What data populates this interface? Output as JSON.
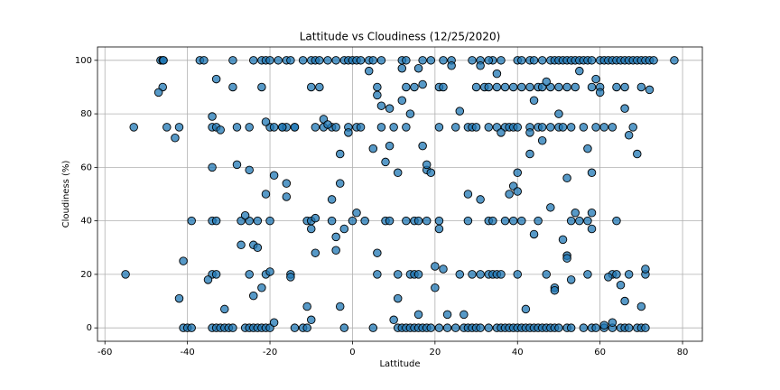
{
  "chart_data": {
    "type": "scatter",
    "title": "Lattitude vs Cloudiness (12/25/2020)",
    "x_label": "Lattitude",
    "y_label": "Cloudiness (%)",
    "color": "#1f77b4",
    "edgecolor": "#000000",
    "grid": true,
    "xlim": [
      -61.8,
      84.8
    ],
    "ylim": [
      -5,
      105
    ],
    "xticks": [
      -60,
      -40,
      -20,
      0,
      20,
      40,
      60,
      80
    ],
    "yticks": [
      0,
      20,
      40,
      60,
      80,
      100
    ],
    "x": [
      -46.5,
      -46,
      -45.8,
      -37,
      -36,
      -29,
      -24,
      -22,
      -21,
      -20,
      -18,
      -16,
      -15,
      -12,
      -10,
      -9,
      -8,
      -6,
      -4,
      -2,
      -1,
      0,
      1,
      2,
      4,
      5,
      7,
      12,
      13,
      17,
      19,
      22,
      24,
      29,
      31,
      34,
      36,
      40,
      41,
      43,
      44,
      46,
      48,
      49,
      50,
      51,
      52,
      53,
      54,
      55,
      56,
      57,
      58,
      60,
      61,
      62,
      63,
      64,
      65,
      66,
      67,
      68,
      69,
      70,
      71,
      72,
      73,
      78,
      -41,
      -40,
      -39,
      -34,
      -33,
      -32,
      -31,
      -30,
      -29,
      -26,
      -25,
      -24,
      -23,
      -22,
      -21,
      -20,
      -14,
      -12,
      -11,
      -2,
      5,
      11,
      12,
      13,
      14,
      15,
      16,
      17,
      18,
      19,
      21,
      23,
      25,
      27,
      28,
      29,
      30,
      31,
      33,
      35,
      36,
      37,
      38,
      39,
      40,
      41,
      42,
      43,
      44,
      45,
      46,
      47,
      48,
      49,
      50,
      52,
      53,
      56,
      58,
      59,
      61,
      63,
      65,
      66,
      67,
      69,
      70,
      71,
      -53,
      -45,
      -42,
      -34,
      -33,
      -28,
      -25,
      -20,
      -19,
      -17,
      -16,
      -14,
      -9,
      -7,
      -5,
      -4,
      -1,
      1,
      2,
      7,
      10,
      13,
      21,
      25,
      28,
      29,
      30,
      33,
      35,
      37,
      38,
      39,
      40,
      43,
      45,
      46,
      48,
      50,
      51,
      53,
      56,
      59,
      61,
      63,
      -46,
      -29,
      -22,
      -10,
      -8,
      6,
      13,
      15,
      21,
      30,
      32,
      33,
      35,
      37,
      39,
      41,
      43,
      45,
      46,
      48,
      50,
      52,
      54,
      58,
      60,
      64,
      66,
      70,
      -39,
      -34,
      -33,
      -27,
      -25,
      -23,
      -20,
      -11,
      -10,
      -5,
      0,
      3,
      8,
      9,
      13,
      15,
      16,
      18,
      21,
      28,
      33,
      34,
      37,
      39,
      41,
      45,
      53,
      55,
      57,
      64,
      -55,
      -34,
      -33,
      -25,
      -21,
      -15,
      6,
      11,
      14,
      15,
      16,
      26,
      29,
      31,
      33,
      34,
      35,
      36,
      40,
      47,
      57,
      63,
      67,
      71,
      -47,
      -43,
      -42,
      -41,
      -35,
      -34,
      -34,
      -33,
      -32,
      -31,
      -28,
      -27,
      -26,
      -25,
      -24,
      -24,
      -23,
      -22,
      -21,
      -21,
      -20,
      -19,
      -19,
      -17,
      -16,
      -16,
      -15,
      -14,
      -11,
      -10,
      -10,
      -9,
      -9,
      -7,
      -6,
      -5,
      -4,
      -4,
      -3,
      -3,
      -3,
      -2,
      -1,
      1,
      4,
      5,
      6,
      6,
      7,
      8,
      9,
      9,
      10,
      11,
      11,
      12,
      12,
      14,
      16,
      16,
      17,
      17,
      18,
      18,
      19,
      20,
      20,
      21,
      22,
      22,
      23,
      24,
      26,
      27,
      28,
      31,
      31,
      33,
      35,
      36,
      38,
      39,
      40,
      40,
      42,
      43,
      43,
      44,
      44,
      46,
      47,
      48,
      49,
      49,
      50,
      51,
      52,
      52,
      52,
      53,
      54,
      55,
      57,
      58,
      58,
      58,
      59,
      60,
      61,
      62,
      63,
      64,
      65,
      66,
      66,
      67,
      68,
      69,
      70,
      71,
      72
    ],
    "values": [
      100,
      100,
      100,
      100,
      100,
      100,
      100,
      100,
      100,
      100,
      100,
      100,
      100,
      100,
      100,
      100,
      100,
      100,
      100,
      100,
      100,
      100,
      100,
      100,
      100,
      100,
      100,
      100,
      100,
      100,
      100,
      100,
      100,
      100,
      100,
      100,
      100,
      100,
      100,
      100,
      100,
      100,
      100,
      100,
      100,
      100,
      100,
      100,
      100,
      100,
      100,
      100,
      100,
      100,
      100,
      100,
      100,
      100,
      100,
      100,
      100,
      100,
      100,
      100,
      100,
      100,
      100,
      100,
      0,
      0,
      0,
      0,
      0,
      0,
      0,
      0,
      0,
      0,
      0,
      0,
      0,
      0,
      0,
      0,
      0,
      0,
      0,
      0,
      0,
      0,
      0,
      0,
      0,
      0,
      0,
      0,
      0,
      0,
      0,
      0,
      0,
      0,
      0,
      0,
      0,
      0,
      0,
      0,
      0,
      0,
      0,
      0,
      0,
      0,
      0,
      0,
      0,
      0,
      0,
      0,
      0,
      0,
      0,
      0,
      0,
      0,
      0,
      0,
      0,
      0,
      0,
      0,
      0,
      0,
      0,
      0,
      75,
      75,
      75,
      75,
      75,
      75,
      75,
      75,
      75,
      75,
      75,
      75,
      75,
      75,
      75,
      75,
      75,
      75,
      75,
      75,
      75,
      75,
      75,
      75,
      75,
      75,
      75,
      75,
      75,
      75,
      75,
      75,
      75,
      75,
      75,
      75,
      75,
      75,
      75,
      75,
      75,
      75,
      75,
      75,
      90,
      90,
      90,
      90,
      90,
      90,
      90,
      90,
      90,
      90,
      90,
      90,
      90,
      90,
      90,
      90,
      90,
      90,
      90,
      90,
      90,
      90,
      90,
      90,
      90,
      90,
      90,
      90,
      40,
      40,
      40,
      40,
      40,
      40,
      40,
      40,
      40,
      40,
      40,
      40,
      40,
      40,
      40,
      40,
      40,
      40,
      40,
      40,
      40,
      40,
      40,
      40,
      40,
      40,
      40,
      40,
      40,
      40,
      20,
      20,
      20,
      20,
      20,
      20,
      20,
      20,
      20,
      20,
      20,
      20,
      20,
      20,
      20,
      20,
      20,
      20,
      20,
      20,
      20,
      20,
      20,
      20,
      88,
      71,
      11,
      25,
      18,
      79,
      60,
      93,
      74,
      7,
      61,
      31,
      42,
      59,
      12,
      31,
      30,
      15,
      77,
      50,
      21,
      57,
      2,
      75,
      54,
      49,
      19,
      75,
      8,
      3,
      37,
      28,
      41,
      78,
      76,
      48,
      29,
      34,
      54,
      65,
      8,
      37,
      73,
      43,
      96,
      67,
      28,
      87,
      83,
      62,
      82,
      68,
      3,
      11,
      58,
      85,
      97,
      80,
      97,
      5,
      68,
      91,
      59,
      61,
      58,
      15,
      23,
      37,
      22,
      90,
      5,
      98,
      81,
      5,
      50,
      48,
      98,
      100,
      95,
      73,
      50,
      53,
      51,
      58,
      7,
      73,
      65,
      35,
      85,
      70,
      92,
      45,
      15,
      14,
      80,
      33,
      56,
      27,
      26,
      18,
      43,
      96,
      67,
      43,
      58,
      37,
      93,
      88,
      1,
      19,
      2,
      20,
      16,
      10,
      82,
      72,
      75,
      65,
      8,
      22,
      89
    ]
  }
}
